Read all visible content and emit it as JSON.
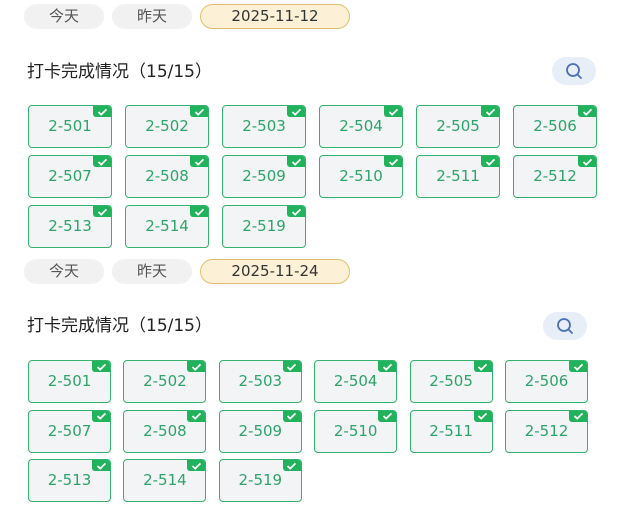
{
  "colors": {
    "accent_green": "#21b35b",
    "selected_pill": "#fcf1d6"
  },
  "sections": [
    {
      "tabs": [
        "今天",
        "昨天",
        "2025-11-12"
      ],
      "selected_tab": 2,
      "title": "打卡完成情况（15/15）",
      "search_icon": "search-icon",
      "rooms": [
        {
          "label": "2-501",
          "checked": true
        },
        {
          "label": "2-502",
          "checked": true
        },
        {
          "label": "2-503",
          "checked": true
        },
        {
          "label": "2-504",
          "checked": true
        },
        {
          "label": "2-505",
          "checked": true
        },
        {
          "label": "2-506",
          "checked": true
        },
        {
          "label": "2-507",
          "checked": true
        },
        {
          "label": "2-508",
          "checked": true
        },
        {
          "label": "2-509",
          "checked": true
        },
        {
          "label": "2-510",
          "checked": true
        },
        {
          "label": "2-511",
          "checked": true
        },
        {
          "label": "2-512",
          "checked": true
        },
        {
          "label": "2-513",
          "checked": true
        },
        {
          "label": "2-514",
          "checked": true
        },
        {
          "label": "2-519",
          "checked": true
        }
      ]
    },
    {
      "tabs": [
        "今天",
        "昨天",
        "2025-11-24"
      ],
      "selected_tab": 2,
      "title": "打卡完成情况（15/15）",
      "search_icon": "search-icon",
      "rooms": [
        {
          "label": "2-501",
          "checked": true
        },
        {
          "label": "2-502",
          "checked": true
        },
        {
          "label": "2-503",
          "checked": true
        },
        {
          "label": "2-504",
          "checked": true
        },
        {
          "label": "2-505",
          "checked": true
        },
        {
          "label": "2-506",
          "checked": true
        },
        {
          "label": "2-507",
          "checked": true
        },
        {
          "label": "2-508",
          "checked": true
        },
        {
          "label": "2-509",
          "checked": true
        },
        {
          "label": "2-510",
          "checked": true
        },
        {
          "label": "2-511",
          "checked": true
        },
        {
          "label": "2-512",
          "checked": true
        },
        {
          "label": "2-513",
          "checked": true
        },
        {
          "label": "2-514",
          "checked": true
        },
        {
          "label": "2-519",
          "checked": true
        }
      ]
    }
  ]
}
